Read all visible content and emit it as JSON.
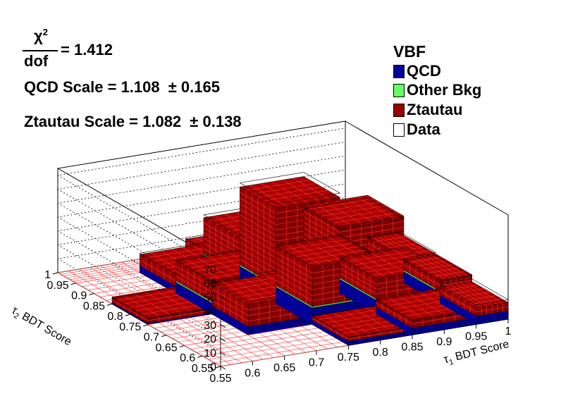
{
  "chart_data": {
    "type": "lego3d",
    "title": "",
    "zlim": [
      0,
      75
    ],
    "z_ticks": [
      0,
      10,
      20,
      30,
      40,
      50,
      60,
      70
    ],
    "x_ticks": [
      "0.55",
      "0.6",
      "0.65",
      "0.7",
      "0.75",
      "0.8",
      "0.85",
      "0.9",
      "0.95",
      "1"
    ],
    "y_ticks": [
      "0.55",
      "0.6",
      "0.65",
      "0.7",
      "0.75",
      "0.8",
      "0.85",
      "0.9",
      "0.95",
      "1"
    ],
    "x_edges": [
      0.55,
      0.65,
      0.75,
      0.85,
      0.95,
      1.0
    ],
    "y_edges": [
      0.55,
      0.65,
      0.75,
      0.85,
      0.95,
      1.0
    ],
    "xlabel_main": "τ",
    "xlabel_sub": "1",
    "xlabel_rest": " BDT Score",
    "ylabel_main": "τ",
    "ylabel_sub": "2",
    "ylabel_rest": " BDT Score",
    "series": [
      {
        "name": "QCD",
        "color": "#000099",
        "values": [
          [
            0,
            0,
            3,
            5,
            6
          ],
          [
            0,
            6,
            12,
            10,
            8
          ],
          [
            1,
            8,
            12,
            14,
            6
          ],
          [
            0,
            5,
            5,
            6,
            4
          ],
          [
            0,
            0,
            3,
            2,
            0
          ]
        ]
      },
      {
        "name": "Other Bkg",
        "color": "#66ff66",
        "values": [
          [
            0,
            0,
            0,
            0,
            0
          ],
          [
            0,
            0,
            1,
            1,
            1
          ],
          [
            0,
            1,
            1,
            2,
            1
          ],
          [
            0,
            0,
            1,
            1,
            1
          ],
          [
            0,
            0,
            0,
            0,
            0
          ]
        ]
      },
      {
        "name": "Ztautau",
        "color": "#990000",
        "values": [
          [
            0,
            0,
            3,
            6,
            6
          ],
          [
            0,
            16,
            28,
            14,
            8
          ],
          [
            4,
            14,
            56,
            32,
            10
          ],
          [
            0,
            8,
            26,
            16,
            6
          ],
          [
            0,
            0,
            6,
            4,
            0
          ]
        ]
      }
    ],
    "data_values": [
      [
        0,
        0,
        6,
        10,
        14
      ],
      [
        0,
        24,
        42,
        26,
        16
      ],
      [
        4,
        24,
        72,
        46,
        18
      ],
      [
        0,
        14,
        34,
        24,
        12
      ],
      [
        0,
        0,
        10,
        8,
        0
      ]
    ]
  },
  "stats": {
    "chi_num": "χ",
    "chi_exp": "2",
    "chi_den": "dof",
    "chi_value": "= 1.412",
    "qcd_scale": "QCD Scale = 1.108",
    "qcd_err": "± 0.165",
    "ztautau_scale": "Ztautau Scale = 1.082",
    "ztautau_err": "± 0.138"
  },
  "legend": {
    "title": "VBF",
    "items": [
      {
        "label": "QCD",
        "color": "#000099"
      },
      {
        "label": "Other Bkg",
        "color": "#66ff66"
      },
      {
        "label": "Ztautau",
        "color": "#990000"
      },
      {
        "label": "Data",
        "color": "#ffffff"
      }
    ]
  }
}
